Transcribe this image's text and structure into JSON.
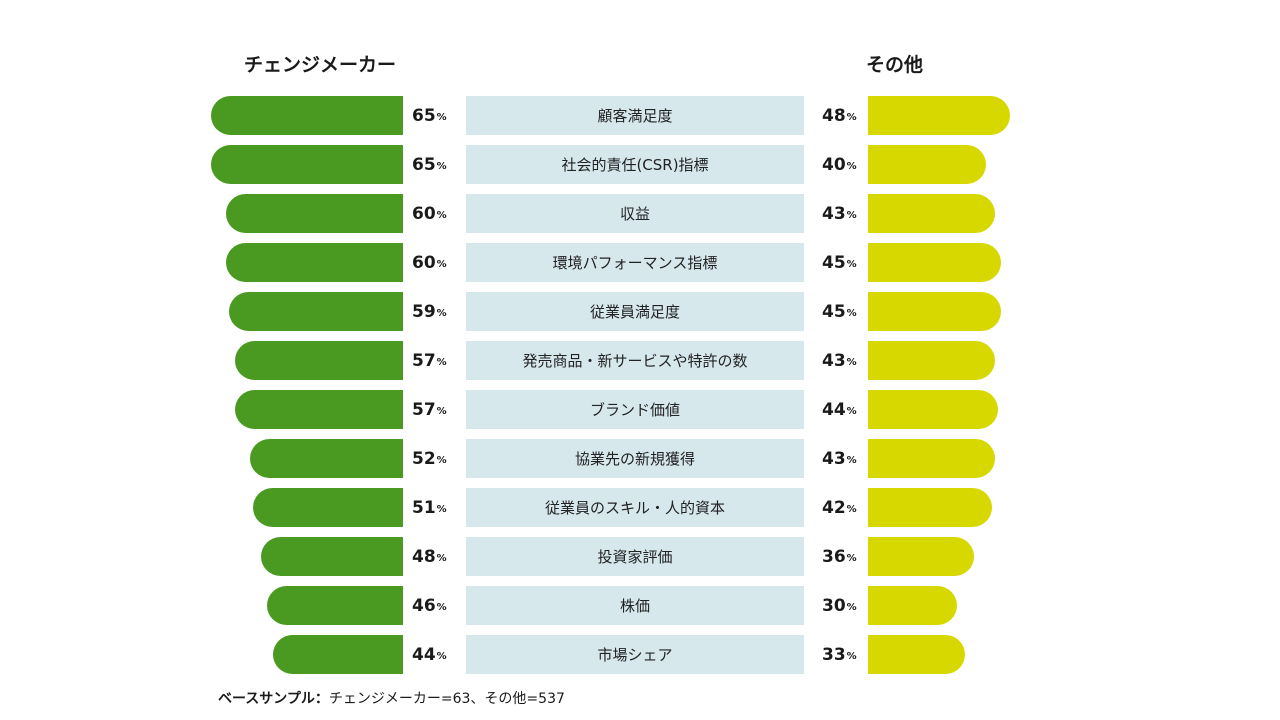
{
  "chart_data": {
    "type": "bar",
    "categories": [
      "顧客満足度",
      "社会的責任(CSR)指標",
      "収益",
      "環境パフォーマンス指標",
      "従業員満足度",
      "発売商品・新サービスや特許の数",
      "ブランド価値",
      "協業先の新規獲得",
      "従業員のスキル・人的資本",
      "投資家評価",
      "株価",
      "市場シェア"
    ],
    "series": [
      {
        "name": "チェンジメーカー",
        "values": [
          65,
          65,
          60,
          60,
          59,
          57,
          57,
          52,
          51,
          48,
          46,
          44
        ],
        "color": "#4a9a22"
      },
      {
        "name": "その他",
        "values": [
          48,
          40,
          43,
          45,
          45,
          43,
          44,
          43,
          42,
          36,
          30,
          33
        ],
        "color": "#d6d800"
      }
    ],
    "unit": "%",
    "category_box_color": "#d6e8ec"
  },
  "footnote": {
    "label": "ベースサンプル：",
    "text": "チェンジメーカー=63、その他=537"
  }
}
